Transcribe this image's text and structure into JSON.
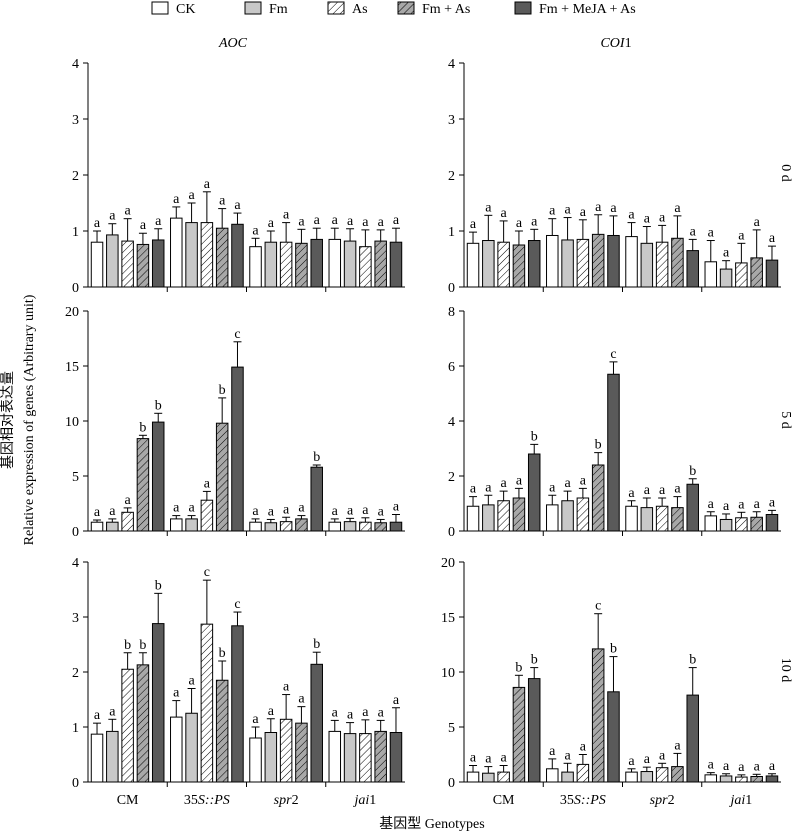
{
  "legend": {
    "entries": [
      {
        "label": "CK",
        "style": "white"
      },
      {
        "label": "Fm",
        "style": "light-gray"
      },
      {
        "label": "As",
        "style": "hatch-white"
      },
      {
        "label": "Fm + As",
        "style": "hatch-gray"
      },
      {
        "label": "Fm + MeJA + As",
        "style": "dark-gray"
      }
    ]
  },
  "columns": [
    {
      "title_italic": "AOC",
      "title_plain": ""
    },
    {
      "title_italic": "COI",
      "title_plain": "1"
    }
  ],
  "rows": [
    "0 d",
    "5 d",
    "10 d"
  ],
  "y_axis_label_cn": "基因相对表达量",
  "y_axis_label_en": "Relative expression of genes (Arbitrary unit)",
  "x_axis_label": "基因型 Genotypes",
  "genotypes": [
    {
      "italic_part": "",
      "plain_part": "CM",
      "note": ""
    },
    {
      "italic_part": "S",
      "plain_part": "35",
      "suffix_italic": "::PS"
    },
    {
      "italic_part": "spr",
      "plain_part": "2"
    },
    {
      "italic_part": "jai",
      "plain_part": "1"
    }
  ],
  "colors": {
    "CK": "#ffffff",
    "Fm": "#c8c8c8",
    "As": "#ffffff",
    "Fm + As": "#a8a8a8",
    "Fm + MeJA + As": "#5a5a5a",
    "stroke": "#000000"
  },
  "chart_data": [
    {
      "type": "bar",
      "panel": "AOC 0 d",
      "ylim": [
        0,
        4
      ],
      "yticks": [
        0,
        1,
        2,
        3,
        4
      ],
      "categories": [
        "CM",
        "35S::PS",
        "spr2",
        "jai1"
      ],
      "series": [
        {
          "name": "CK",
          "values": [
            0.8,
            1.23,
            0.72,
            0.85
          ],
          "errors": [
            0.2,
            0.2,
            0.15,
            0.2
          ],
          "letters": [
            "a",
            "a",
            "a",
            "a"
          ]
        },
        {
          "name": "Fm",
          "values": [
            0.93,
            1.15,
            0.8,
            0.82
          ],
          "errors": [
            0.2,
            0.35,
            0.2,
            0.22
          ],
          "letters": [
            "a",
            "a",
            "a",
            "a"
          ]
        },
        {
          "name": "As",
          "values": [
            0.82,
            1.15,
            0.8,
            0.72
          ],
          "errors": [
            0.4,
            0.55,
            0.35,
            0.3
          ],
          "letters": [
            "a",
            "a",
            "a",
            "a"
          ]
        },
        {
          "name": "Fm + As",
          "values": [
            0.76,
            1.05,
            0.78,
            0.82
          ],
          "errors": [
            0.2,
            0.35,
            0.25,
            0.2
          ],
          "letters": [
            "a",
            "a",
            "a",
            "a"
          ]
        },
        {
          "name": "Fm + MeJA + As",
          "values": [
            0.84,
            1.12,
            0.85,
            0.8
          ],
          "errors": [
            0.2,
            0.2,
            0.2,
            0.25
          ],
          "letters": [
            "a",
            "a",
            "a",
            "a"
          ]
        }
      ]
    },
    {
      "type": "bar",
      "panel": "COI1 0 d",
      "ylim": [
        0,
        4
      ],
      "yticks": [
        0,
        1,
        2,
        3,
        4
      ],
      "categories": [
        "CM",
        "35S::PS",
        "spr2",
        "jai1"
      ],
      "series": [
        {
          "name": "CK",
          "values": [
            0.78,
            0.92,
            0.9,
            0.45
          ],
          "errors": [
            0.2,
            0.3,
            0.25,
            0.38
          ],
          "letters": [
            "a",
            "a",
            "a",
            "a"
          ]
        },
        {
          "name": "Fm",
          "values": [
            0.83,
            0.84,
            0.78,
            0.32
          ],
          "errors": [
            0.45,
            0.4,
            0.3,
            0.15
          ],
          "letters": [
            "a",
            "a",
            "a",
            "a"
          ]
        },
        {
          "name": "As",
          "values": [
            0.8,
            0.85,
            0.8,
            0.43
          ],
          "errors": [
            0.38,
            0.35,
            0.3,
            0.35
          ],
          "letters": [
            "a",
            "a",
            "a",
            "a"
          ]
        },
        {
          "name": "Fm + As",
          "values": [
            0.75,
            0.94,
            0.87,
            0.52
          ],
          "errors": [
            0.25,
            0.35,
            0.4,
            0.5
          ],
          "letters": [
            "a",
            "a",
            "a",
            "a"
          ]
        },
        {
          "name": "Fm + MeJA + As",
          "values": [
            0.83,
            0.92,
            0.65,
            0.48
          ],
          "errors": [
            0.2,
            0.35,
            0.2,
            0.25
          ],
          "letters": [
            "a",
            "a",
            "a",
            "a"
          ]
        }
      ]
    },
    {
      "type": "bar",
      "panel": "AOC 5 d",
      "ylim": [
        0,
        20
      ],
      "yticks": [
        0,
        5,
        10,
        15,
        20
      ],
      "categories": [
        "CM",
        "35S::PS",
        "spr2",
        "jai1"
      ],
      "series": [
        {
          "name": "CK",
          "values": [
            0.8,
            1.1,
            0.8,
            0.8
          ],
          "errors": [
            0.2,
            0.3,
            0.3,
            0.3
          ],
          "letters": [
            "a",
            "a",
            "a",
            "a"
          ]
        },
        {
          "name": "Fm",
          "values": [
            0.8,
            1.1,
            0.75,
            0.85
          ],
          "errors": [
            0.3,
            0.3,
            0.3,
            0.3
          ],
          "letters": [
            "a",
            "a",
            "a",
            "a"
          ]
        },
        {
          "name": "As",
          "values": [
            1.7,
            2.8,
            0.85,
            0.8
          ],
          "errors": [
            0.4,
            0.8,
            0.4,
            0.4
          ],
          "letters": [
            "a",
            "a",
            "a",
            "a"
          ]
        },
        {
          "name": "Fm + As",
          "values": [
            8.4,
            9.8,
            1.1,
            0.75
          ],
          "errors": [
            0.3,
            2.3,
            0.3,
            0.3
          ],
          "letters": [
            "b",
            "b",
            "a",
            "a"
          ]
        },
        {
          "name": "Fm + MeJA + As",
          "values": [
            9.9,
            14.9,
            5.8,
            0.8
          ],
          "errors": [
            0.8,
            2.3,
            0.2,
            0.7
          ],
          "letters": [
            "b",
            "c",
            "b",
            "a"
          ]
        }
      ]
    },
    {
      "type": "bar",
      "panel": "COI1 5 d",
      "ylim": [
        0,
        8
      ],
      "yticks": [
        0,
        2,
        4,
        6,
        8
      ],
      "categories": [
        "CM",
        "35S::PS",
        "spr2",
        "jai1"
      ],
      "series": [
        {
          "name": "CK",
          "values": [
            0.9,
            0.95,
            0.9,
            0.55
          ],
          "errors": [
            0.35,
            0.35,
            0.2,
            0.15
          ],
          "letters": [
            "a",
            "a",
            "a",
            "a"
          ]
        },
        {
          "name": "Fm",
          "values": [
            0.95,
            1.1,
            0.85,
            0.42
          ],
          "errors": [
            0.35,
            0.35,
            0.35,
            0.2
          ],
          "letters": [
            "a",
            "a",
            "a",
            "a"
          ]
        },
        {
          "name": "As",
          "values": [
            1.1,
            1.2,
            0.9,
            0.48
          ],
          "errors": [
            0.35,
            0.35,
            0.3,
            0.2
          ],
          "letters": [
            "a",
            "a",
            "a",
            "a"
          ]
        },
        {
          "name": "Fm + As",
          "values": [
            1.2,
            2.4,
            0.85,
            0.5
          ],
          "errors": [
            0.35,
            0.45,
            0.4,
            0.2
          ],
          "letters": [
            "a",
            "b",
            "a",
            "a"
          ]
        },
        {
          "name": "Fm + MeJA + As",
          "values": [
            2.8,
            5.7,
            1.7,
            0.6
          ],
          "errors": [
            0.35,
            0.45,
            0.2,
            0.15
          ],
          "letters": [
            "b",
            "c",
            "b",
            "a"
          ]
        }
      ]
    },
    {
      "type": "bar",
      "panel": "AOC 10 d",
      "ylim": [
        0,
        4
      ],
      "yticks": [
        0,
        1,
        2,
        3,
        4
      ],
      "categories": [
        "CM",
        "35S::PS",
        "spr2",
        "jai1"
      ],
      "series": [
        {
          "name": "CK",
          "values": [
            0.87,
            1.18,
            0.8,
            0.92
          ],
          "errors": [
            0.2,
            0.3,
            0.2,
            0.2
          ],
          "letters": [
            "a",
            "a",
            "a",
            "a"
          ]
        },
        {
          "name": "Fm",
          "values": [
            0.92,
            1.25,
            0.9,
            0.88
          ],
          "errors": [
            0.22,
            0.45,
            0.25,
            0.2
          ],
          "letters": [
            "a",
            "a",
            "a",
            "a"
          ]
        },
        {
          "name": "As",
          "values": [
            2.05,
            2.87,
            1.14,
            0.88
          ],
          "errors": [
            0.3,
            0.8,
            0.45,
            0.25
          ],
          "letters": [
            "b",
            "c",
            "a",
            "a"
          ]
        },
        {
          "name": "Fm + As",
          "values": [
            2.13,
            1.85,
            1.07,
            0.92
          ],
          "errors": [
            0.22,
            0.35,
            0.3,
            0.2
          ],
          "letters": [
            "b",
            "b",
            "a",
            "a"
          ]
        },
        {
          "name": "Fm + MeJA + As",
          "values": [
            2.88,
            2.84,
            2.14,
            0.9
          ],
          "errors": [
            0.55,
            0.25,
            0.22,
            0.45
          ],
          "letters": [
            "b",
            "c",
            "b",
            "a"
          ]
        }
      ]
    },
    {
      "type": "bar",
      "panel": "COI1 10 d",
      "ylim": [
        0,
        20
      ],
      "yticks": [
        0,
        5,
        10,
        15,
        20
      ],
      "categories": [
        "CM",
        "35S::PS",
        "spr2",
        "jai1"
      ],
      "series": [
        {
          "name": "CK",
          "values": [
            0.9,
            1.2,
            0.9,
            0.65
          ],
          "errors": [
            0.6,
            0.9,
            0.3,
            0.2
          ],
          "letters": [
            "a",
            "a",
            "a",
            "a"
          ]
        },
        {
          "name": "Fm",
          "values": [
            0.8,
            0.9,
            0.95,
            0.55
          ],
          "errors": [
            0.6,
            0.8,
            0.4,
            0.2
          ],
          "letters": [
            "a",
            "a",
            "a",
            "a"
          ]
        },
        {
          "name": "As",
          "values": [
            0.9,
            1.6,
            1.3,
            0.45
          ],
          "errors": [
            0.6,
            0.9,
            0.4,
            0.2
          ],
          "letters": [
            "a",
            "a",
            "a",
            "a"
          ]
        },
        {
          "name": "Fm + As",
          "values": [
            8.6,
            12.1,
            1.4,
            0.5
          ],
          "errors": [
            1.1,
            3.2,
            1.2,
            0.2
          ],
          "letters": [
            "b",
            "c",
            "a",
            "a"
          ]
        },
        {
          "name": "Fm + MeJA + As",
          "values": [
            9.4,
            8.2,
            7.9,
            0.55
          ],
          "errors": [
            1.0,
            3.2,
            2.5,
            0.2
          ],
          "letters": [
            "b",
            "b",
            "b",
            "a"
          ]
        }
      ]
    }
  ]
}
